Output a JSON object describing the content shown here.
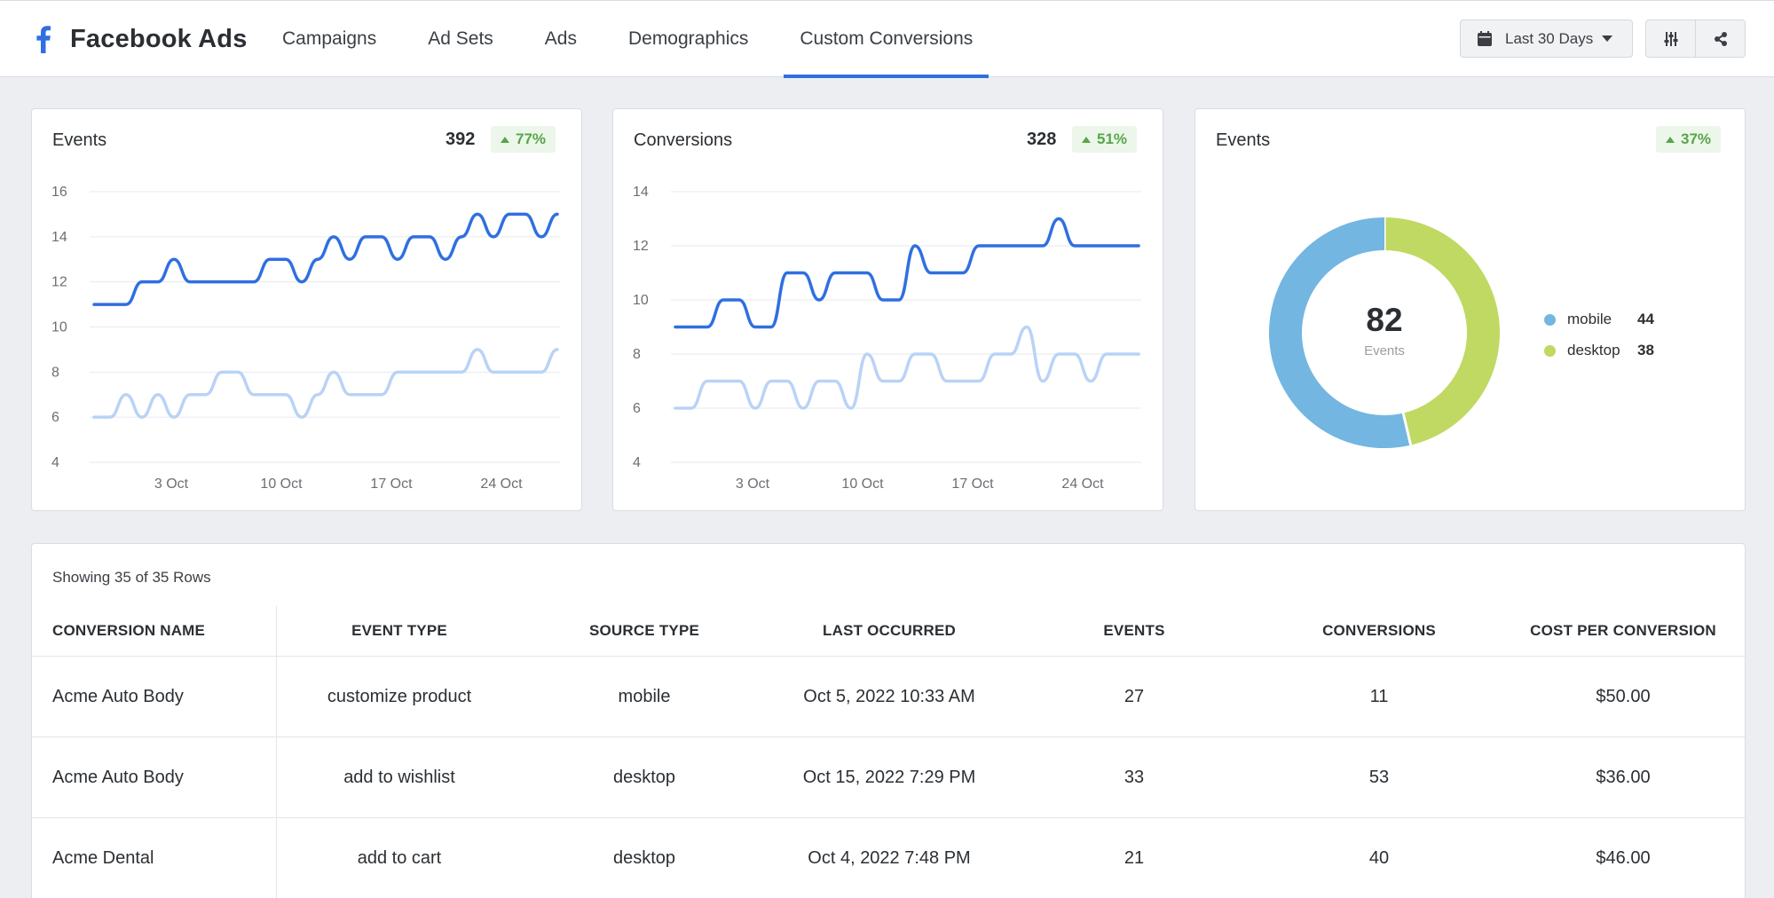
{
  "header": {
    "title": "Facebook Ads",
    "tabs": [
      {
        "label": "Campaigns"
      },
      {
        "label": "Ad Sets"
      },
      {
        "label": "Ads"
      },
      {
        "label": "Demographics"
      },
      {
        "label": "Custom Conversions",
        "active": true
      }
    ],
    "date_range": "Last 30 Days",
    "icons": [
      "calendar-icon",
      "filter-sliders-icon",
      "share-icon"
    ]
  },
  "colors": {
    "accent": "#2f6fe0",
    "series_current": "#2f6fe0",
    "series_previous": "#b9d3f6",
    "mobile": "#73b6e1",
    "desktop": "#bfd962",
    "badge_green": "#57a64a"
  },
  "cards": {
    "events_line": {
      "title": "Events",
      "total": "392",
      "change": "77%"
    },
    "conversions_line": {
      "title": "Conversions",
      "total": "328",
      "change": "51%"
    },
    "events_donut": {
      "title": "Events",
      "change": "37%",
      "center_value": "82",
      "center_label": "Events"
    }
  },
  "chart_data": [
    {
      "type": "line",
      "title": "Events",
      "x_ticks": [
        "3 Oct",
        "10 Oct",
        "17 Oct",
        "24 Oct"
      ],
      "y_ticks": [
        4,
        6,
        8,
        10,
        12,
        14,
        16
      ],
      "ylim": [
        4,
        16
      ],
      "grid": true,
      "series": [
        {
          "values": [
            11,
            11,
            11,
            12,
            12,
            13,
            12,
            12,
            12,
            12,
            12,
            13,
            13,
            12,
            13,
            14,
            13,
            14,
            14,
            13,
            14,
            14,
            13,
            14,
            15,
            14,
            15,
            15,
            14,
            15
          ]
        },
        {
          "values": [
            6,
            6,
            7,
            6,
            7,
            6,
            7,
            7,
            8,
            8,
            7,
            7,
            7,
            6,
            7,
            8,
            7,
            7,
            7,
            8,
            8,
            8,
            8,
            8,
            9,
            8,
            8,
            8,
            8,
            9
          ]
        }
      ]
    },
    {
      "type": "line",
      "title": "Conversions",
      "x_ticks": [
        "3 Oct",
        "10 Oct",
        "17 Oct",
        "24 Oct"
      ],
      "y_ticks": [
        4,
        6,
        8,
        10,
        12,
        14
      ],
      "ylim": [
        4,
        14
      ],
      "grid": true,
      "series": [
        {
          "values": [
            9,
            9,
            9,
            10,
            10,
            9,
            9,
            11,
            11,
            10,
            11,
            11,
            11,
            10,
            10,
            12,
            11,
            11,
            11,
            12,
            12,
            12,
            12,
            12,
            13,
            12,
            12,
            12,
            12,
            12
          ]
        },
        {
          "values": [
            6,
            6,
            7,
            7,
            7,
            6,
            7,
            7,
            6,
            7,
            7,
            6,
            8,
            7,
            7,
            8,
            8,
            7,
            7,
            7,
            8,
            8,
            9,
            7,
            8,
            8,
            7,
            8,
            8,
            8
          ]
        }
      ]
    },
    {
      "type": "pie",
      "title": "Events",
      "categories": [
        "mobile",
        "desktop"
      ],
      "values": [
        44,
        38
      ],
      "legend": "right"
    }
  ],
  "legend": [
    {
      "label": "mobile",
      "value": "44"
    },
    {
      "label": "desktop",
      "value": "38"
    }
  ],
  "table": {
    "rows_info": "Showing 35 of 35 Rows",
    "columns": [
      "CONVERSION NAME",
      "EVENT TYPE",
      "SOURCE TYPE",
      "LAST OCCURRED",
      "EVENTS",
      "CONVERSIONS",
      "COST PER CONVERSION"
    ],
    "rows": [
      [
        "Acme Auto Body",
        "customize product",
        "mobile",
        "Oct 5, 2022 10:33 AM",
        "27",
        "11",
        "$50.00"
      ],
      [
        "Acme Auto Body",
        "add to wishlist",
        "desktop",
        "Oct 15, 2022 7:29 PM",
        "33",
        "53",
        "$36.00"
      ],
      [
        "Acme Dental",
        "add to cart",
        "desktop",
        "Oct 4, 2022 7:48 PM",
        "21",
        "40",
        "$46.00"
      ]
    ]
  }
}
